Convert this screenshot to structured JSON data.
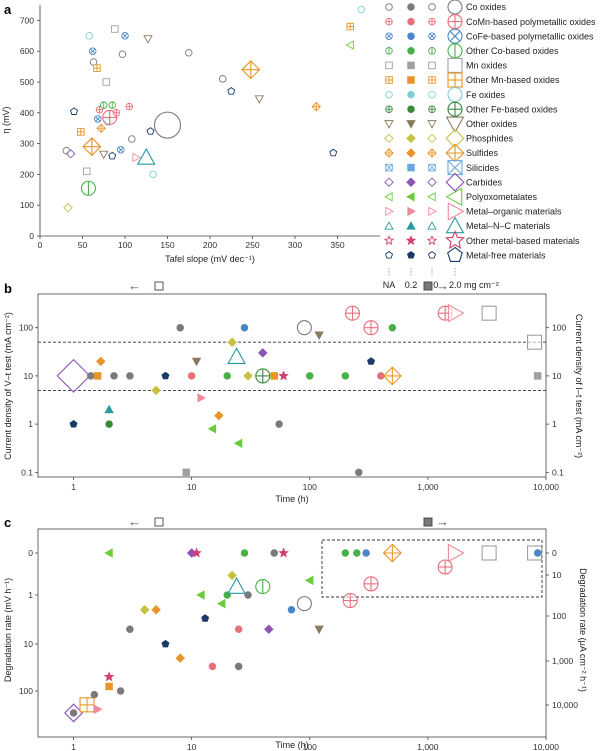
{
  "figure": {
    "panel_labels": [
      "a",
      "b",
      "c"
    ],
    "colors": {
      "co_oxides": "#7a7a7a",
      "comn": "#e8707a",
      "cofe": "#4a87c8",
      "other_co": "#48b048",
      "mn_oxides": "#a0a0a0",
      "other_mn": "#e8952a",
      "fe_oxides": "#80cfd8",
      "other_fe": "#3a8a3a",
      "other_oxides": "#8a7a60",
      "phosphides": "#c8c040",
      "sulfides": "#e8952a",
      "silicides": "#6aa8e0",
      "carbides": "#8a55b8",
      "pom": "#6acc3a",
      "mom": "#f08a9a",
      "mnc": "#2a9aa0",
      "other_metal": "#d04070",
      "metal_free": "#1a3a6a"
    },
    "legend": {
      "items": [
        "Co oxides",
        "CoMn-based polymetallic oxides",
        "CoFe-based polymetallic oxides",
        "Other Co-based oxides",
        "Mn oxides",
        "Other Mn-based oxides",
        "Fe oxides",
        "Other Fe-based oxides",
        "Other oxides",
        "Phosphides",
        "Sulfides",
        "Silicides",
        "Carbides",
        "Polyoxometalates",
        "Metal–organic materials",
        "Metal–N–C materials",
        "Other metal-based materials",
        "Metal-free materials"
      ],
      "loading_labels": [
        "NA",
        "0.2",
        "1.0",
        "2.0 mg cm⁻²"
      ]
    },
    "panel_b_markers": {
      "left_arrow": "←",
      "right_arrow": "→"
    }
  },
  "chart_data": [
    {
      "panel": "a",
      "type": "scatter",
      "xlabel": "Tafel slope (mV dec⁻¹)",
      "ylabel": "η (mV)",
      "xlim": [
        0,
        400
      ],
      "ylim": [
        0,
        750
      ],
      "xticks": [
        "0",
        "50",
        "100",
        "150",
        "200",
        "250",
        "300",
        "350"
      ],
      "yticks": [
        "0",
        "100",
        "200",
        "300",
        "400",
        "500",
        "600",
        "700"
      ],
      "points": [
        {
          "x": 31,
          "y": 277,
          "c": "co_oxides",
          "s": 1
        },
        {
          "x": 36,
          "y": 267,
          "c": "carbides",
          "s": 1
        },
        {
          "x": 33,
          "y": 92,
          "c": "phosphides",
          "s": 1
        },
        {
          "x": 40,
          "y": 404,
          "c": "metal_free",
          "s": 1
        },
        {
          "x": 48,
          "y": 338,
          "c": "other_mn",
          "s": 1
        },
        {
          "x": 55,
          "y": 210,
          "c": "mn_oxides",
          "s": 1
        },
        {
          "x": 57,
          "y": 155,
          "c": "other_co",
          "s": 2
        },
        {
          "x": 58,
          "y": 650,
          "c": "fe_oxides",
          "s": 1
        },
        {
          "x": 62,
          "y": 600,
          "c": "cofe",
          "s": 1
        },
        {
          "x": 61,
          "y": 290,
          "c": "sulfides",
          "s": 2
        },
        {
          "x": 63,
          "y": 565,
          "c": "co_oxides",
          "s": 1
        },
        {
          "x": 67,
          "y": 545,
          "c": "other_mn",
          "s": 1
        },
        {
          "x": 68,
          "y": 380,
          "c": "cofe",
          "s": 1
        },
        {
          "x": 70,
          "y": 410,
          "c": "comn",
          "s": 1
        },
        {
          "x": 72,
          "y": 350,
          "c": "sulfides",
          "s": 1
        },
        {
          "x": 75,
          "y": 425,
          "c": "other_co",
          "s": 1
        },
        {
          "x": 75,
          "y": 265,
          "c": "other_oxides",
          "s": 1
        },
        {
          "x": 78,
          "y": 500,
          "c": "mn_oxides",
          "s": 1
        },
        {
          "x": 80,
          "y": 370,
          "c": "fe_oxides",
          "s": 1
        },
        {
          "x": 82,
          "y": 385,
          "c": "comn",
          "s": 2
        },
        {
          "x": 85,
          "y": 425,
          "c": "other_co",
          "s": 1
        },
        {
          "x": 85,
          "y": 260,
          "c": "metal_free",
          "s": 1
        },
        {
          "x": 88,
          "y": 672,
          "c": "mn_oxides",
          "s": 1
        },
        {
          "x": 90,
          "y": 400,
          "c": "comn",
          "s": 1
        },
        {
          "x": 95,
          "y": 280,
          "c": "cofe",
          "s": 1
        },
        {
          "x": 97,
          "y": 590,
          "c": "co_oxides",
          "s": 1
        },
        {
          "x": 100,
          "y": 650,
          "c": "cofe",
          "s": 1
        },
        {
          "x": 105,
          "y": 420,
          "c": "comn",
          "s": 1
        },
        {
          "x": 108,
          "y": 315,
          "c": "co_oxides",
          "s": 1
        },
        {
          "x": 113,
          "y": 255,
          "c": "mom",
          "s": 1
        },
        {
          "x": 130,
          "y": 340,
          "c": "metal_free",
          "s": 1
        },
        {
          "x": 127,
          "y": 640,
          "c": "other_oxides",
          "s": 1
        },
        {
          "x": 133,
          "y": 200,
          "c": "fe_oxides",
          "s": 1
        },
        {
          "x": 125,
          "y": 255,
          "c": "mnc",
          "s": 2
        },
        {
          "x": 150,
          "y": 360,
          "c": "co_oxides",
          "s": 3
        },
        {
          "x": 175,
          "y": 595,
          "c": "co_oxides",
          "s": 1
        },
        {
          "x": 215,
          "y": 510,
          "c": "co_oxides",
          "s": 1
        },
        {
          "x": 225,
          "y": 470,
          "c": "metal_free",
          "s": 1
        },
        {
          "x": 248,
          "y": 540,
          "c": "sulfides",
          "s": 2
        },
        {
          "x": 258,
          "y": 445,
          "c": "other_oxides",
          "s": 1
        },
        {
          "x": 325,
          "y": 420,
          "c": "sulfides",
          "s": 1
        },
        {
          "x": 345,
          "y": 270,
          "c": "metal_free",
          "s": 1
        },
        {
          "x": 365,
          "y": 680,
          "c": "other_mn",
          "s": 1
        },
        {
          "x": 365,
          "y": 620,
          "c": "pom",
          "s": 1
        },
        {
          "x": 378,
          "y": 735,
          "c": "fe_oxides",
          "s": 1
        }
      ]
    },
    {
      "panel": "b",
      "type": "scatter",
      "xlabel": "Time (h)",
      "ylabel": "Current density of V–t test (mA cm⁻²)",
      "ylabel_right": "Current density of I–t test (mA cm⁻²)",
      "xscale": "log",
      "yscale": "log",
      "xlim": [
        0.5,
        10000
      ],
      "ylim": [
        0.08,
        500
      ],
      "xticks": [
        "1",
        "10",
        "100",
        "1,000",
        "10,000"
      ],
      "yticks": [
        "0.1",
        "1",
        "10",
        "100"
      ],
      "reference_lines": [
        5,
        50
      ],
      "points": [
        {
          "x": 1,
          "y": 10,
          "c": "carbides",
          "s": 3
        },
        {
          "x": 1,
          "y": 1,
          "c": "metal_free",
          "s": 1
        },
        {
          "x": 1.4,
          "y": 10,
          "c": "co_oxides",
          "s": 1
        },
        {
          "x": 1.6,
          "y": 10,
          "c": "other_mn",
          "s": 1
        },
        {
          "x": 1.7,
          "y": 20,
          "c": "sulfides",
          "s": 1
        },
        {
          "x": 2,
          "y": 2,
          "c": "mnc",
          "s": 1
        },
        {
          "x": 2,
          "y": 1,
          "c": "other_fe",
          "s": 1
        },
        {
          "x": 2.2,
          "y": 10,
          "c": "co_oxides",
          "s": 1
        },
        {
          "x": 3,
          "y": 10,
          "c": "co_oxides",
          "s": 1
        },
        {
          "x": 5,
          "y": 5,
          "c": "phosphides",
          "s": 1
        },
        {
          "x": 6,
          "y": 10,
          "c": "metal_free",
          "s": 1
        },
        {
          "x": 8,
          "y": 100,
          "c": "co_oxides",
          "s": 1
        },
        {
          "x": 9,
          "y": 0.1,
          "c": "mn_oxides",
          "s": 1
        },
        {
          "x": 10,
          "y": 10,
          "c": "comn",
          "s": 1
        },
        {
          "x": 11,
          "y": 20,
          "c": "other_oxides",
          "s": 1
        },
        {
          "x": 12,
          "y": 3.5,
          "c": "mom",
          "s": 1
        },
        {
          "x": 15,
          "y": 0.8,
          "c": "pom",
          "s": 1
        },
        {
          "x": 17,
          "y": 1.5,
          "c": "sulfides",
          "s": 1
        },
        {
          "x": 20,
          "y": 10,
          "c": "other_co",
          "s": 1
        },
        {
          "x": 22,
          "y": 50,
          "c": "phosphides",
          "s": 1
        },
        {
          "x": 24,
          "y": 25,
          "c": "mnc",
          "s": 2
        },
        {
          "x": 25,
          "y": 0.4,
          "c": "pom",
          "s": 1
        },
        {
          "x": 28,
          "y": 100,
          "c": "cofe",
          "s": 1
        },
        {
          "x": 30,
          "y": 10,
          "c": "phosphides",
          "s": 1
        },
        {
          "x": 40,
          "y": 10,
          "c": "other_fe",
          "s": 2
        },
        {
          "x": 40,
          "y": 30,
          "c": "carbides",
          "s": 1
        },
        {
          "x": 50,
          "y": 10,
          "c": "other_mn",
          "s": 1
        },
        {
          "x": 55,
          "y": 1,
          "c": "co_oxides",
          "s": 1
        },
        {
          "x": 60,
          "y": 10,
          "c": "other_metal",
          "s": 1
        },
        {
          "x": 90,
          "y": 100,
          "c": "co_oxides",
          "s": 2
        },
        {
          "x": 100,
          "y": 10,
          "c": "other_co",
          "s": 1
        },
        {
          "x": 120,
          "y": 70,
          "c": "other_oxides",
          "s": 1
        },
        {
          "x": 200,
          "y": 10,
          "c": "other_co",
          "s": 1
        },
        {
          "x": 230,
          "y": 200,
          "c": "comn",
          "s": 2
        },
        {
          "x": 260,
          "y": 0.1,
          "c": "co_oxides",
          "s": 1
        },
        {
          "x": 330,
          "y": 100,
          "c": "comn",
          "s": 2
        },
        {
          "x": 330,
          "y": 20,
          "c": "metal_free",
          "s": 1
        },
        {
          "x": 400,
          "y": 10,
          "c": "comn",
          "s": 1
        },
        {
          "x": 500,
          "y": 100,
          "c": "other_co",
          "s": 1
        },
        {
          "x": 500,
          "y": 10,
          "c": "sulfides",
          "s": 2
        },
        {
          "x": 1400,
          "y": 200,
          "c": "comn",
          "s": 2
        },
        {
          "x": 1700,
          "y": 200,
          "c": "mom",
          "s": 2
        },
        {
          "x": 3300,
          "y": 200,
          "c": "mn_oxides",
          "s": 2
        },
        {
          "x": 8000,
          "y": 50,
          "c": "mn_oxides",
          "s": 2
        },
        {
          "x": 8500,
          "y": 10,
          "c": "mn_oxides",
          "s": 1
        }
      ]
    },
    {
      "panel": "c",
      "type": "scatter",
      "xlabel": "Time (h)",
      "ylabel": "Degradation rate (mV h⁻¹)",
      "ylabel_right": "Degradation rate (μA cm⁻² h⁻¹)",
      "xscale": "log",
      "yscale": "symlog",
      "xlim": [
        0.5,
        10000
      ],
      "yticks": [
        "0",
        "1",
        "10",
        "100"
      ],
      "yticks_right": [
        "0",
        "10",
        "100",
        "1,000",
        "10,000"
      ],
      "xticks": [
        "1",
        "10",
        "100",
        "1,000",
        "10,000"
      ],
      "points": [
        {
          "x": 1,
          "y": 300,
          "c": "carbides",
          "s": 2
        },
        {
          "x": 1,
          "y": 300,
          "c": "co_oxides",
          "s": 1
        },
        {
          "x": 1.3,
          "y": 200,
          "c": "other_mn",
          "s": 2
        },
        {
          "x": 1.5,
          "y": 120,
          "c": "co_oxides",
          "s": 1
        },
        {
          "x": 1.6,
          "y": 250,
          "c": "mom",
          "s": 1
        },
        {
          "x": 2,
          "y": 0,
          "c": "pom",
          "s": 1
        },
        {
          "x": 2,
          "y": 80,
          "c": "other_mn",
          "s": 1
        },
        {
          "x": 2,
          "y": 50,
          "c": "other_metal",
          "s": 1
        },
        {
          "x": 2.5,
          "y": 100,
          "c": "co_oxides",
          "s": 1
        },
        {
          "x": 3,
          "y": 5,
          "c": "co_oxides",
          "s": 1
        },
        {
          "x": 4,
          "y": 2,
          "c": "phosphides",
          "s": 1
        },
        {
          "x": 5,
          "y": 2,
          "c": "sulfides",
          "s": 1
        },
        {
          "x": 6,
          "y": 10,
          "c": "metal_free",
          "s": 1
        },
        {
          "x": 8,
          "y": 20,
          "c": "sulfides",
          "s": 1
        },
        {
          "x": 10,
          "y": 0,
          "c": "carbides",
          "s": 1
        },
        {
          "x": 11,
          "y": 0,
          "c": "other_metal",
          "s": 1
        },
        {
          "x": 12,
          "y": 1,
          "c": "pom",
          "s": 1
        },
        {
          "x": 13,
          "y": 3,
          "c": "metal_free",
          "s": 1
        },
        {
          "x": 15,
          "y": 30,
          "c": "comn",
          "s": 1
        },
        {
          "x": 18,
          "y": 1.5,
          "c": "pom",
          "s": 1
        },
        {
          "x": 20,
          "y": 1,
          "c": "other_co",
          "s": 1
        },
        {
          "x": 22,
          "y": 0.2,
          "c": "phosphides",
          "s": 1
        },
        {
          "x": 24,
          "y": 0.5,
          "c": "mnc",
          "s": 2
        },
        {
          "x": 25,
          "y": 5,
          "c": "comn",
          "s": 1
        },
        {
          "x": 25,
          "y": 30,
          "c": "co_oxides",
          "s": 1
        },
        {
          "x": 28,
          "y": 0,
          "c": "other_co",
          "s": 1
        },
        {
          "x": 30,
          "y": 1,
          "c": "co_oxides",
          "s": 1
        },
        {
          "x": 40,
          "y": 0.5,
          "c": "other_co",
          "s": 2
        },
        {
          "x": 45,
          "y": 5,
          "c": "carbides",
          "s": 1
        },
        {
          "x": 50,
          "y": 0,
          "c": "co_oxides",
          "s": 1
        },
        {
          "x": 60,
          "y": 0,
          "c": "other_metal",
          "s": 1
        },
        {
          "x": 70,
          "y": 2,
          "c": "cofe",
          "s": 1
        },
        {
          "x": 90,
          "y": 1.5,
          "c": "co_oxides",
          "s": 2
        },
        {
          "x": 100,
          "y": 0.3,
          "c": "pom",
          "s": 1
        },
        {
          "x": 120,
          "y": 5,
          "c": "other_oxides",
          "s": 1
        },
        {
          "x": 200,
          "y": 0,
          "c": "other_co",
          "s": 1
        },
        {
          "x": 220,
          "y": 1.3,
          "c": "comn",
          "s": 2
        },
        {
          "x": 250,
          "y": 0,
          "c": "other_co",
          "s": 1
        },
        {
          "x": 300,
          "y": 0,
          "c": "cofe",
          "s": 1
        },
        {
          "x": 330,
          "y": 0.4,
          "c": "comn",
          "s": 2
        },
        {
          "x": 500,
          "y": 0,
          "c": "sulfides",
          "s": 2
        },
        {
          "x": 1400,
          "y": 0.1,
          "c": "comn",
          "s": 2
        },
        {
          "x": 1700,
          "y": 0,
          "c": "mom",
          "s": 2
        },
        {
          "x": 3300,
          "y": 0,
          "c": "mn_oxides",
          "s": 2
        },
        {
          "x": 8000,
          "y": 0,
          "c": "mn_oxides",
          "s": 2
        },
        {
          "x": 8500,
          "y": 0,
          "c": "cofe",
          "s": 1
        }
      ]
    }
  ]
}
